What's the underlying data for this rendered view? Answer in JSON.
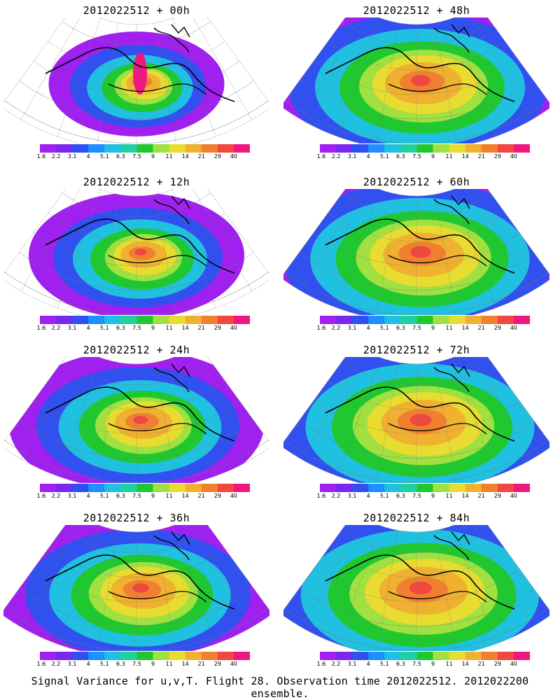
{
  "panels": [
    {
      "title": "2012022512 + 00h",
      "spread": 0.45
    },
    {
      "title": "2012022512 + 48h",
      "spread": 1.0
    },
    {
      "title": "2012022512 + 12h",
      "spread": 0.6
    },
    {
      "title": "2012022512 + 60h",
      "spread": 1.05
    },
    {
      "title": "2012022512 + 24h",
      "spread": 0.75
    },
    {
      "title": "2012022512 + 72h",
      "spread": 1.1
    },
    {
      "title": "2012022512 + 36h",
      "spread": 0.85
    },
    {
      "title": "2012022512 + 84h",
      "spread": 1.15
    }
  ],
  "colorbar": {
    "labels": [
      "1.6",
      "2.2",
      "3.1",
      "4",
      "5.1",
      "6.3",
      "7.5",
      "9",
      "11",
      "14",
      "21",
      "29",
      "40"
    ],
    "colors": [
      "#a020f0",
      "#7a28f0",
      "#3050f0",
      "#1e90ff",
      "#20c0e0",
      "#20d0a0",
      "#20c830",
      "#a0e040",
      "#e8dc30",
      "#f0b030",
      "#f08030",
      "#f04840",
      "#f01880"
    ]
  },
  "footer": "Signal Variance for u,v,T. Flight 28. Observation time 2012022512. 2012022200 ensemble."
}
